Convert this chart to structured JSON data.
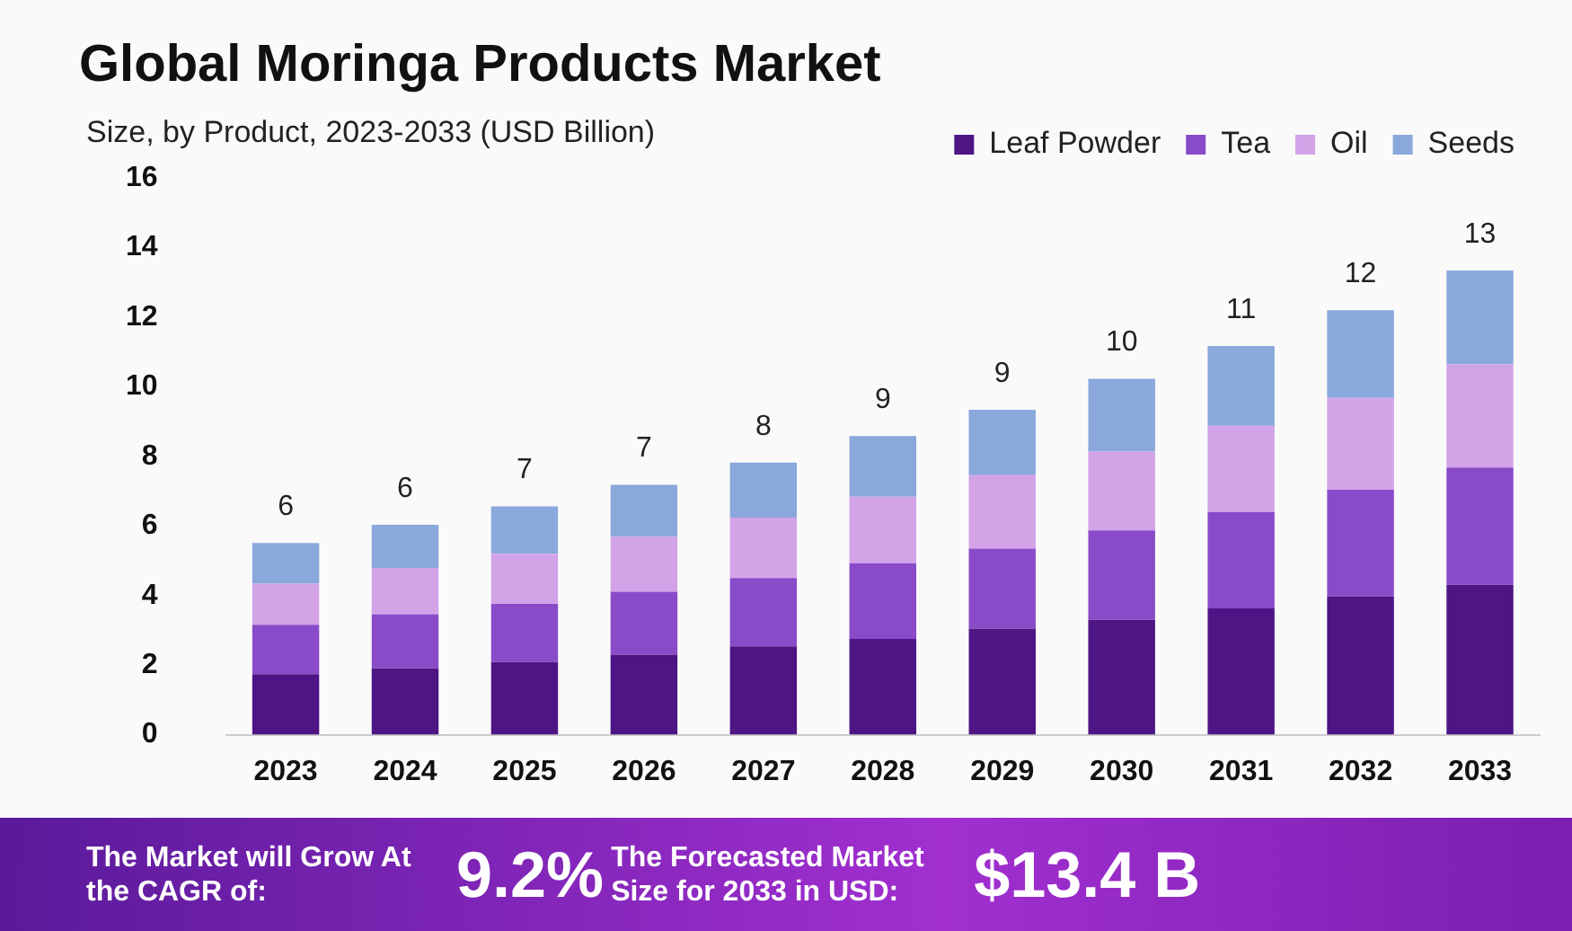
{
  "chart_data": {
    "type": "bar",
    "title": "Global Moringa Products Market",
    "subtitle": "Size, by Product, 2023-2033 (USD Billion)",
    "categories": [
      "2023",
      "2024",
      "2025",
      "2026",
      "2027",
      "2028",
      "2029",
      "2030",
      "2031",
      "2032",
      "2033"
    ],
    "stacked": true,
    "series": [
      {
        "name": "Leaf Powder",
        "color": "#4e1585",
        "values": [
          1.74,
          1.91,
          2.09,
          2.3,
          2.54,
          2.75,
          3.05,
          3.3,
          3.63,
          3.97,
          4.31
        ]
      },
      {
        "name": "Tea",
        "color": "#8a4bc9",
        "values": [
          1.42,
          1.55,
          1.67,
          1.81,
          1.96,
          2.18,
          2.3,
          2.57,
          2.77,
          3.07,
          3.37
        ]
      },
      {
        "name": "Oil",
        "color": "#d3a3e8",
        "values": [
          1.18,
          1.33,
          1.44,
          1.58,
          1.74,
          1.91,
          2.11,
          2.27,
          2.48,
          2.64,
          2.96
        ]
      },
      {
        "name": "Seeds",
        "color": "#8aa8dc",
        "values": [
          1.17,
          1.24,
          1.36,
          1.49,
          1.58,
          1.74,
          1.88,
          2.09,
          2.29,
          2.52,
          2.7
        ]
      }
    ],
    "ylim": [
      0,
      16
    ],
    "yticks": [
      0,
      2,
      4,
      6,
      8,
      10,
      12,
      14,
      16
    ],
    "totals": [
      "6",
      "6",
      "7",
      "7",
      "8",
      "9",
      "9",
      "10",
      "11",
      "12",
      "13"
    ],
    "grid": false,
    "legend": "top right",
    "annotations": [
      "The Market will Grow At the CAGR of:",
      "9.2%",
      "The Forecasted Market Size for 2033 in USD:",
      "$13.4 B"
    ]
  }
}
